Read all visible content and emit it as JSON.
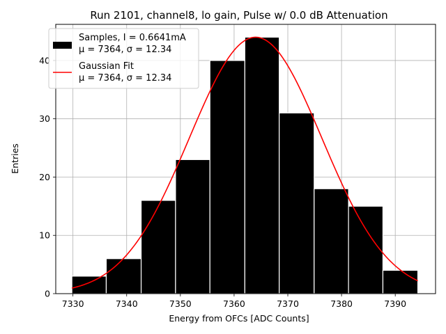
{
  "chart_data": {
    "type": "bar",
    "title": "Run 2101, channel8, lo gain, Pulse w/ 0.0 dB Attenuation",
    "xlabel": "Energy from OFCs [ADC Counts]",
    "ylabel": "Entries",
    "xlim": [
      7326.8,
      7397.5
    ],
    "ylim": [
      0,
      46.2
    ],
    "xticks": [
      7330,
      7340,
      7350,
      7360,
      7370,
      7380,
      7390
    ],
    "yticks": [
      0,
      10,
      20,
      30,
      40
    ],
    "grid": true,
    "legend_position": "top-left",
    "bins": [
      {
        "x0": 7329.8,
        "x1": 7336.2,
        "count": 3
      },
      {
        "x0": 7336.2,
        "x1": 7342.7,
        "count": 6
      },
      {
        "x0": 7342.7,
        "x1": 7349.1,
        "count": 16
      },
      {
        "x0": 7349.1,
        "x1": 7355.5,
        "count": 23
      },
      {
        "x0": 7355.5,
        "x1": 7362.0,
        "count": 40
      },
      {
        "x0": 7362.0,
        "x1": 7368.4,
        "count": 44
      },
      {
        "x0": 7368.4,
        "x1": 7374.9,
        "count": 31
      },
      {
        "x0": 7374.9,
        "x1": 7381.3,
        "count": 18
      },
      {
        "x0": 7381.3,
        "x1": 7387.7,
        "count": 15
      },
      {
        "x0": 7387.7,
        "x1": 7394.2,
        "count": 4
      }
    ],
    "series": [
      {
        "name": "Samples, I = 0.6641mA",
        "stats": "μ = 7364, σ = 12.34",
        "kind": "histogram",
        "color": "#000000"
      },
      {
        "name": "Gaussian Fit",
        "stats": "μ = 7364, σ = 12.34",
        "kind": "line",
        "color": "#ff0000",
        "mu": 7364.0,
        "sigma": 12.34,
        "amplitude": 44.0,
        "x_range": [
          7329.8,
          7394.2
        ]
      }
    ]
  }
}
